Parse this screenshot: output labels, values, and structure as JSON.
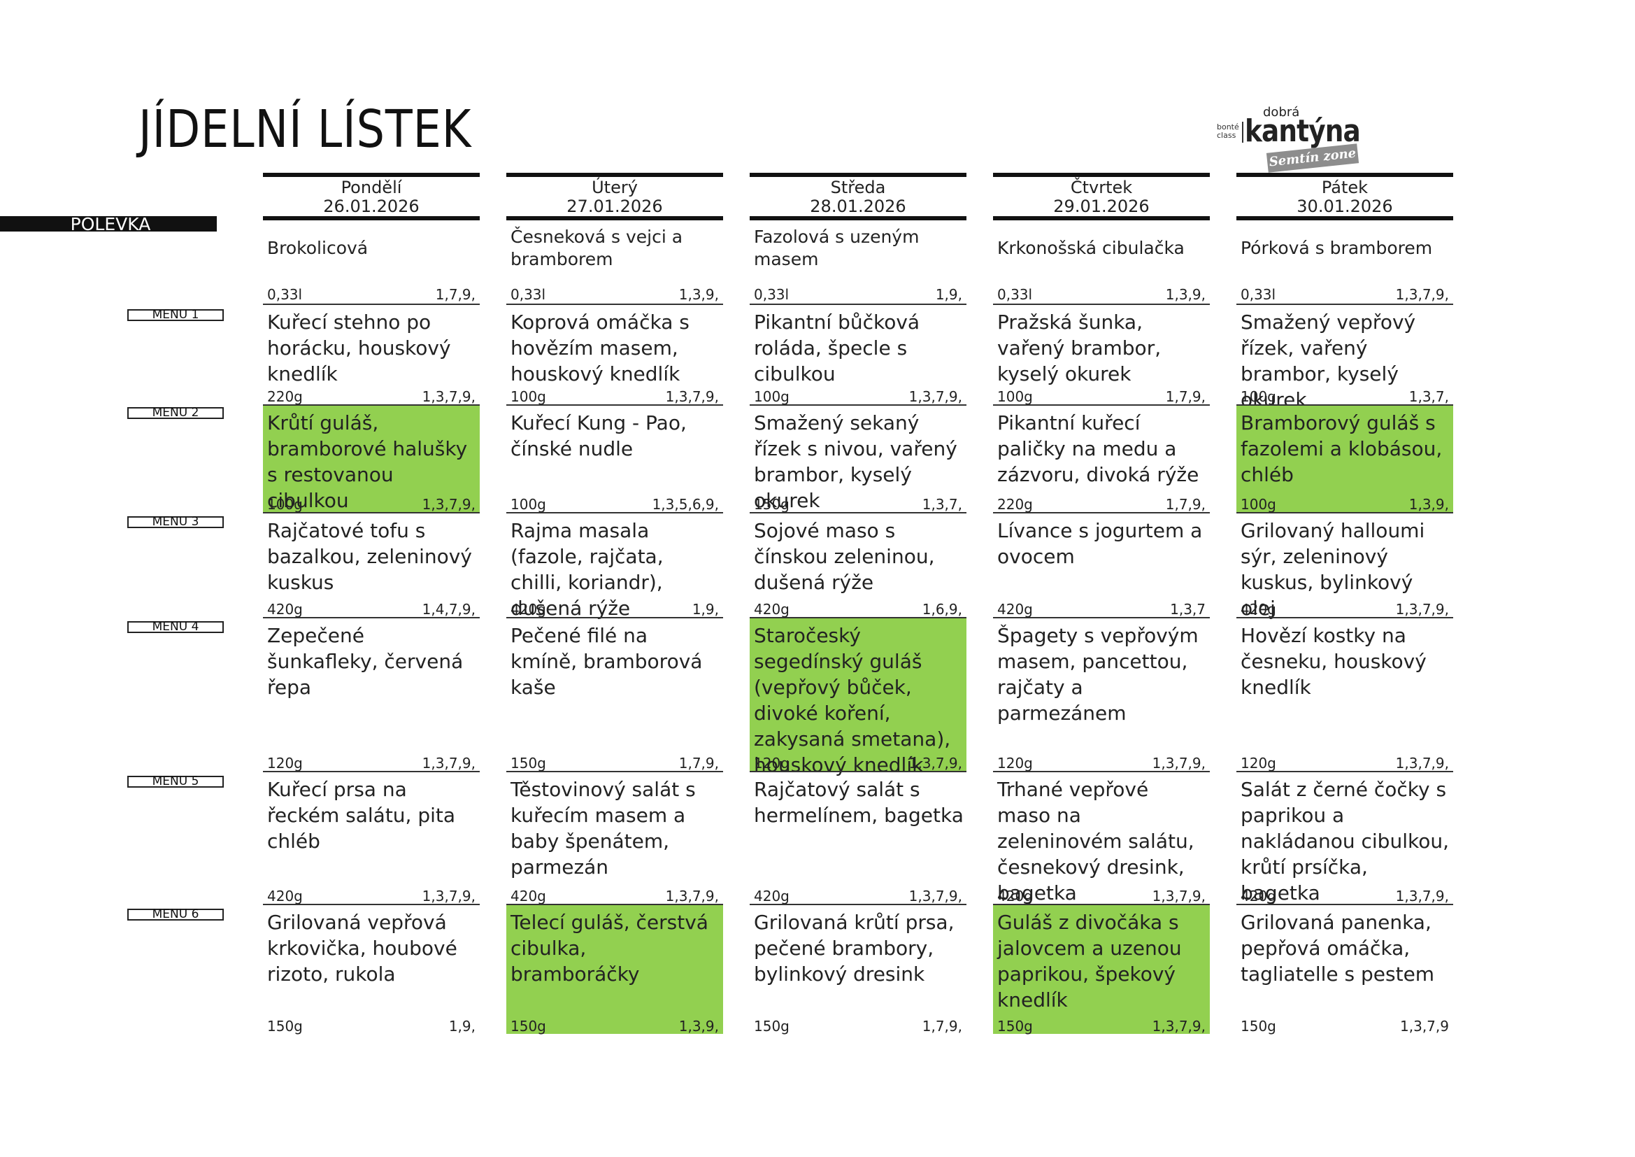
{
  "title": "JÍDELNÍ LÍSTEK",
  "logo": {
    "dobra": "dobrá",
    "bonte": "bonté",
    "class": "class",
    "kantyna": "kantýna",
    "zone": "Semtín zone"
  },
  "row_labels": [
    "POLÉVKA",
    "MENU 1",
    "MENU 2",
    "MENU 3",
    "MENU 4",
    "MENU 5",
    "MENU 6"
  ],
  "highlight_color": "#92d050",
  "days": [
    {
      "name": "Pondělí",
      "date": "26.01.2026",
      "soup": {
        "name": "Brokolicová",
        "weight": "0,33l",
        "allergens": "1,7,9,"
      },
      "menus": [
        {
          "dish": "Kuřecí stehno po horácku, houskový knedlík",
          "weight": "220g",
          "allergens": "1,3,7,9,",
          "highlight": false
        },
        {
          "dish": "Krůtí guláš, bramborové halušky s restovanou cibulkou",
          "weight": "100g",
          "allergens": "1,3,7,9,",
          "highlight": true
        },
        {
          "dish": "Rajčatové tofu s bazalkou, zeleninový kuskus",
          "weight": "420g",
          "allergens": "1,4,7,9,",
          "highlight": false
        },
        {
          "dish": "Zepečené šunkafleky, červená řepa",
          "weight": "120g",
          "allergens": "1,3,7,9,",
          "highlight": false
        },
        {
          "dish": "Kuřecí prsa na řeckém salátu, pita chléb",
          "weight": "420g",
          "allergens": "1,3,7,9,",
          "highlight": false
        },
        {
          "dish": "Grilovaná vepřová krkovička, houbové rizoto, rukola",
          "weight": "150g",
          "allergens": "1,9,",
          "highlight": false
        }
      ]
    },
    {
      "name": "Úterý",
      "date": "27.01.2026",
      "soup": {
        "name": "Česneková s vejci a bramborem",
        "weight": "0,33l",
        "allergens": "1,3,9,"
      },
      "menus": [
        {
          "dish": "Koprová omáčka s hovězím masem, houskový knedlík",
          "weight": "100g",
          "allergens": "1,3,7,9,",
          "highlight": false
        },
        {
          "dish": "Kuřecí Kung - Pao, čínské nudle",
          "weight": "100g",
          "allergens": "1,3,5,6,9,",
          "highlight": false
        },
        {
          "dish": "Rajma masala (fazole, rajčata, chilli, koriandr), dušená rýže",
          "weight": "420g",
          "allergens": "1,9,",
          "highlight": false
        },
        {
          "dish": "Pečené filé na kmíně, bramborová kaše",
          "weight": "150g",
          "allergens": "1,7,9,",
          "highlight": false
        },
        {
          "dish": "Těstovinový salát s kuřecím masem a baby špenátem, parmezán",
          "weight": "420g",
          "allergens": "1,3,7,9,",
          "highlight": false
        },
        {
          "dish": "Telecí guláš, čerstvá cibulka, bramboráčky",
          "weight": "150g",
          "allergens": "1,3,9,",
          "highlight": true
        }
      ]
    },
    {
      "name": "Středa",
      "date": "28.01.2026",
      "soup": {
        "name": "Fazolová s uzeným masem",
        "weight": "0,33l",
        "allergens": "1,9,"
      },
      "menus": [
        {
          "dish": "Pikantní bůčková roláda, špecle s cibulkou",
          "weight": "100g",
          "allergens": "1,3,7,9,",
          "highlight": false
        },
        {
          "dish": "Smažený sekaný řízek s nivou, vařený brambor, kyselý okurek",
          "weight": "150g",
          "allergens": "1,3,7,",
          "highlight": false
        },
        {
          "dish": "Sojové maso s čínskou zeleninou, dušená rýže",
          "weight": "420g",
          "allergens": "1,6,9,",
          "highlight": false
        },
        {
          "dish": "Staročeský segedínský guláš (vepřový bůček, divoké koření, zakysaná smetana), houskový knedlík",
          "weight": "120g",
          "allergens": "1,3,7,9,",
          "highlight": true
        },
        {
          "dish": "Rajčatový salát s hermelínem, bagetka",
          "weight": "420g",
          "allergens": "1,3,7,9,",
          "highlight": false
        },
        {
          "dish": "Grilovaná krůtí prsa, pečené brambory, bylinkový dresink",
          "weight": "150g",
          "allergens": "1,7,9,",
          "highlight": false
        }
      ]
    },
    {
      "name": "Čtvrtek",
      "date": "29.01.2026",
      "soup": {
        "name": "Krkonošská cibulačka",
        "weight": "0,33l",
        "allergens": "1,3,9,"
      },
      "menus": [
        {
          "dish": "Pražská šunka, vařený brambor, kyselý okurek",
          "weight": "100g",
          "allergens": "1,7,9,",
          "highlight": false
        },
        {
          "dish": "Pikantní kuřecí paličky na medu a zázvoru, divoká rýže",
          "weight": "220g",
          "allergens": "1,7,9,",
          "highlight": false
        },
        {
          "dish": "Lívance s jogurtem a ovocem",
          "weight": "420g",
          "allergens": "1,3,7",
          "highlight": false
        },
        {
          "dish": "Špagety s vepřovým masem, pancettou, rajčaty a parmezánem",
          "weight": "120g",
          "allergens": "1,3,7,9,",
          "highlight": false
        },
        {
          "dish": "Trhané vepřové maso na zeleninovém salátu, česnekový dresink, bagetka",
          "weight": "420g",
          "allergens": "1,3,7,9,",
          "highlight": false
        },
        {
          "dish": "Guláš z divočáka s jalovcem a uzenou paprikou, špekový knedlík",
          "weight": "150g",
          "allergens": "1,3,7,9,",
          "highlight": true
        }
      ]
    },
    {
      "name": "Pátek",
      "date": "30.01.2026",
      "soup": {
        "name": "Pórková s bramborem",
        "weight": "0,33l",
        "allergens": "1,3,7,9,"
      },
      "menus": [
        {
          "dish": "Smažený vepřový řízek, vařený brambor, kyselý okurek",
          "weight": "100g",
          "allergens": "1,3,7,",
          "highlight": false
        },
        {
          "dish": "Bramborový guláš s fazolemi a klobásou, chléb",
          "weight": "100g",
          "allergens": "1,3,9,",
          "highlight": true
        },
        {
          "dish": "Grilovaný halloumi sýr, zeleninový kuskus, bylinkový olej",
          "weight": "420g",
          "allergens": "1,3,7,9,",
          "highlight": false
        },
        {
          "dish": "Hovězí kostky na česneku, houskový knedlík",
          "weight": "120g",
          "allergens": "1,3,7,9,",
          "highlight": false
        },
        {
          "dish": "Salát z černé čočky s paprikou a nakládanou cibulkou, krůtí prsíčka, bagetka",
          "weight": "420g",
          "allergens": "1,3,7,9,",
          "highlight": false
        },
        {
          "dish": "Grilovaná panenka, pepřová omáčka, tagliatelle s pestem",
          "weight": "150g",
          "allergens": "1,3,7,9",
          "highlight": false
        }
      ]
    }
  ]
}
